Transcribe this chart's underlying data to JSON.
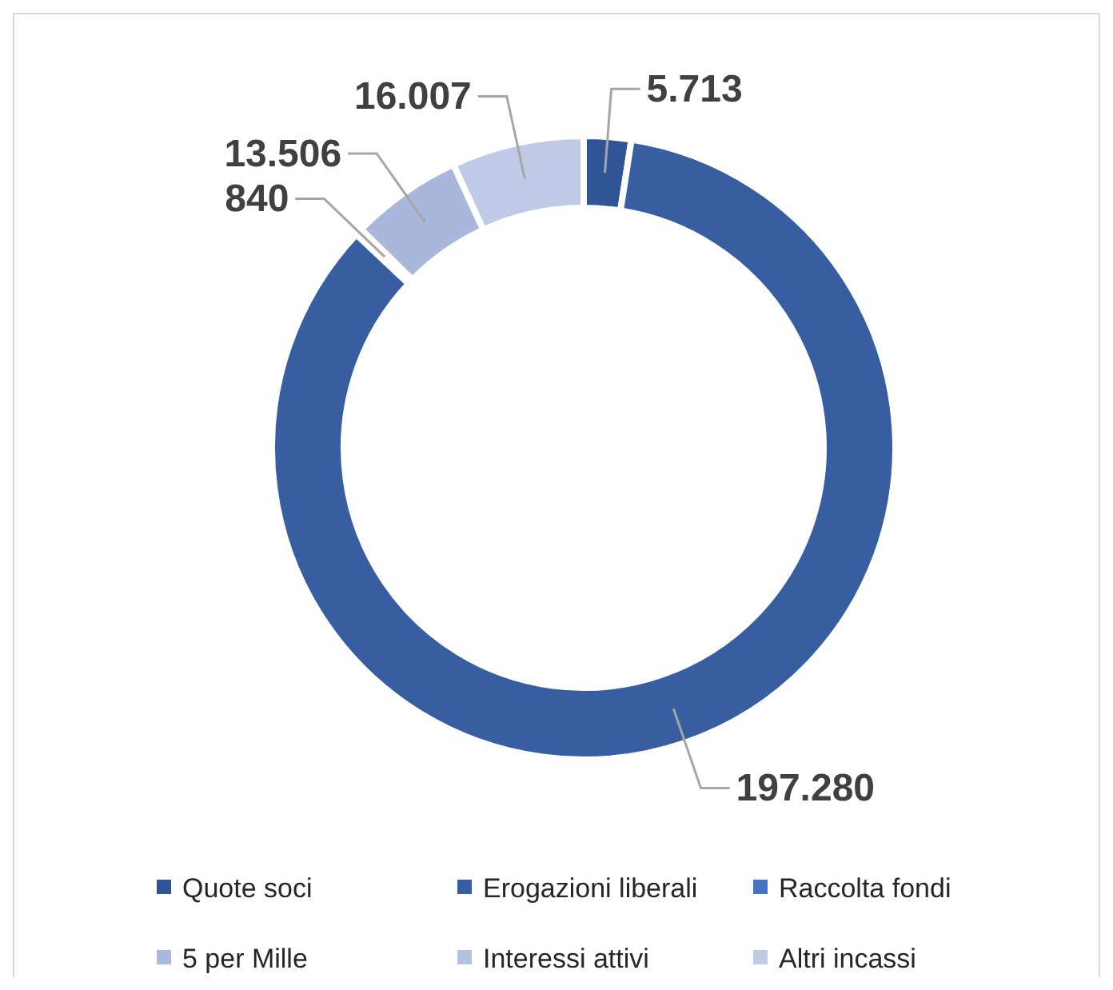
{
  "chart_data": {
    "type": "donut",
    "categories": [
      "Quote soci",
      "Erogazioni liberali",
      "Raccolta fondi",
      "5 per Mille",
      "Interessi attivi",
      "Altri incassi"
    ],
    "values": [
      5713,
      197280,
      840,
      13506,
      0,
      16007
    ],
    "value_labels": [
      "5.713",
      "197.280",
      "840",
      "13.506",
      null,
      "16.007"
    ],
    "colors": [
      "#2f5597",
      "#365ea0",
      "#4472c4",
      "#a9b7db",
      "#b4c1e0",
      "#bfcae6"
    ],
    "legend": "bottom"
  }
}
